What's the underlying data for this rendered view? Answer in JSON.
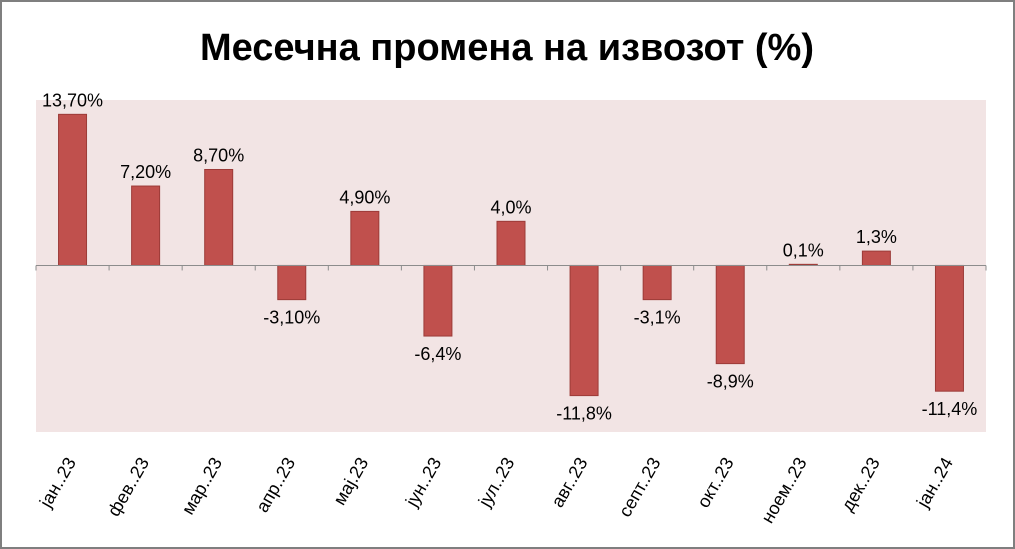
{
  "chart_data": {
    "type": "bar",
    "title": "Месечна промена на извозот (%)",
    "categories": [
      "јан..23",
      "фев..23",
      "мар..23",
      "апр..23",
      "мај.23",
      "јун..23",
      "јул..23",
      "авг..23",
      "септ..23",
      "окт..23",
      "ноем..23",
      "дек..23",
      "јан..24"
    ],
    "values": [
      13.7,
      7.2,
      8.7,
      -3.1,
      4.9,
      -6.4,
      4.0,
      -11.8,
      -3.1,
      -8.9,
      0.1,
      1.3,
      -11.4
    ],
    "data_labels": [
      "13,70%",
      "7,20%",
      "8,70%",
      "-3,10%",
      "4,90%",
      "-6,4%",
      "4,0%",
      "-11,8%",
      "-3,1%",
      "-8,9%",
      "0,1%",
      "1,3%",
      "-11,4%"
    ],
    "xlabel": "",
    "ylabel": "",
    "ylim": [
      -15.1,
      15.0
    ],
    "grid": false,
    "colors": {
      "bar": "#c0504d",
      "bar_border": "#9c3b38",
      "plot_bg": "#f2e4e4"
    }
  }
}
